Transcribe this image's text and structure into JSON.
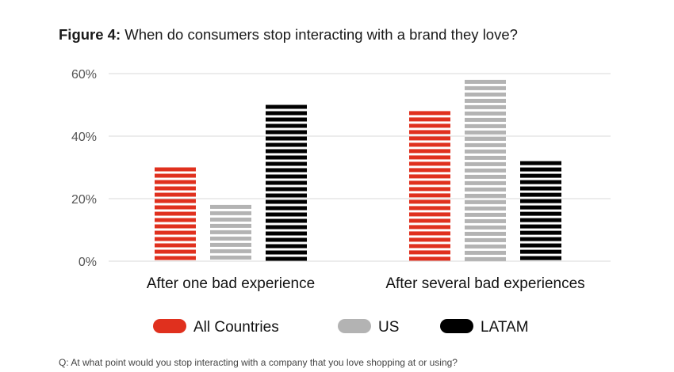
{
  "title_prefix": "Figure 4:",
  "title_text": "When do consumers stop interacting with a brand they love?",
  "footnote": "Q: At what point would you stop interacting with a company that you love shopping at or using?",
  "chart_data": {
    "type": "bar",
    "categories": [
      "After one bad experience",
      "After several bad experiences"
    ],
    "series": [
      {
        "name": "All Countries",
        "values": [
          30,
          48
        ],
        "color": "#e0301e"
      },
      {
        "name": "US",
        "values": [
          18,
          58
        ],
        "color": "#b3b3b3"
      },
      {
        "name": "LATAM",
        "values": [
          50,
          32
        ],
        "color": "#000000"
      }
    ],
    "ylim": [
      0,
      60
    ],
    "yticks": [
      0,
      20,
      40,
      60
    ],
    "ytick_labels": [
      "0%",
      "20%",
      "40%",
      "60%"
    ],
    "grid": true,
    "legend_position": "bottom"
  }
}
